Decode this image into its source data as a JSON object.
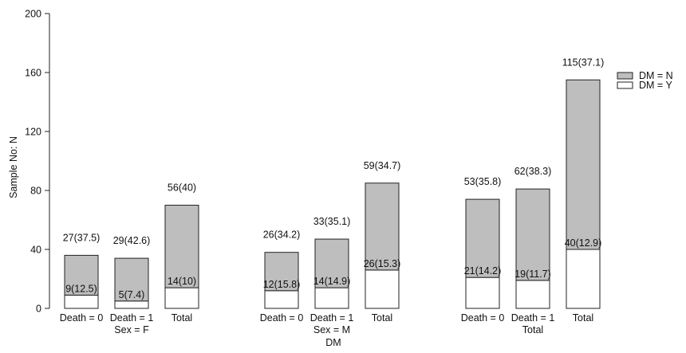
{
  "chart_data": {
    "type": "bar",
    "stacked": true,
    "ylabel": "Sample No: N",
    "ylim": [
      0,
      200
    ],
    "yticks": [
      0,
      40,
      80,
      120,
      160,
      200
    ],
    "legend_position": "top-right",
    "series": [
      {
        "name": "DM = Y",
        "color": "#ffffff"
      },
      {
        "name": "DM = N",
        "color": "#bebebe"
      }
    ],
    "groups": [
      {
        "label": "Sex = F",
        "bars": [
          {
            "category": "Death = 0",
            "y_value": 9,
            "n_value": 27,
            "y_label": "9(12.5)",
            "n_label": "27(37.5)"
          },
          {
            "category": "Death = 1",
            "y_value": 5,
            "n_value": 29,
            "y_label": "5(7.4)",
            "n_label": "29(42.6)"
          },
          {
            "category": "Total",
            "y_value": 14,
            "n_value": 56,
            "y_label": "14(10)",
            "n_label": "56(40)"
          }
        ]
      },
      {
        "label": "Sex = M",
        "bars": [
          {
            "category": "Death = 0",
            "y_value": 12,
            "n_value": 26,
            "y_label": "12(15.8)",
            "n_label": "26(34.2)"
          },
          {
            "category": "Death = 1",
            "y_value": 14,
            "n_value": 33,
            "y_label": "14(14.9)",
            "n_label": "33(35.1)"
          },
          {
            "category": "Total",
            "y_value": 26,
            "n_value": 59,
            "y_label": "26(15.3)",
            "n_label": "59(34.7)"
          }
        ]
      },
      {
        "label": "Total",
        "bars": [
          {
            "category": "Death = 0",
            "y_value": 21,
            "n_value": 53,
            "y_label": "21(14.2)",
            "n_label": "53(35.8)"
          },
          {
            "category": "Death = 1",
            "y_value": 19,
            "n_value": 62,
            "y_label": "19(11.7)",
            "n_label": "62(38.3)"
          },
          {
            "category": "Total",
            "y_value": 40,
            "n_value": 115,
            "y_label": "40(12.9)",
            "n_label": "115(37.1)"
          }
        ]
      }
    ],
    "footer_label": "DM"
  }
}
